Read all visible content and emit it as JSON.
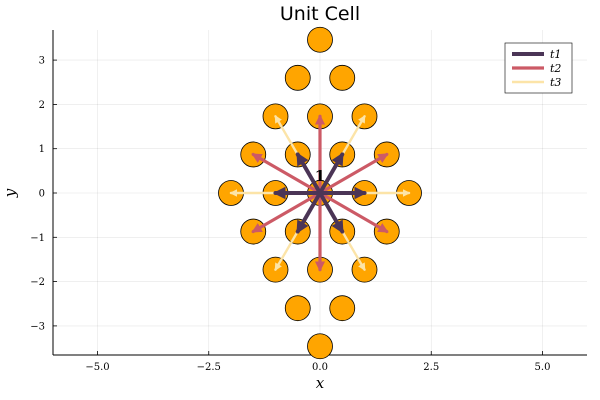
{
  "chart_data": {
    "type": "scatter",
    "title": "Unit Cell",
    "xlabel": "x",
    "ylabel": "y",
    "xlim": [
      -6.0,
      6.0
    ],
    "ylim": [
      -3.7,
      3.7
    ],
    "xticks": [
      -5.0,
      -2.5,
      0.0,
      2.5,
      5.0
    ],
    "xtick_labels": [
      "−5.0",
      "−2.5",
      "0.0",
      "2.5",
      "5.0"
    ],
    "yticks": [
      -3,
      -2,
      -1,
      0,
      1,
      2,
      3
    ],
    "ytick_labels": [
      "−3",
      "−2",
      "−1",
      "0",
      "1",
      "2",
      "3"
    ],
    "grid": true,
    "legend_position": "top-right",
    "annotation": {
      "text": "1",
      "x": 0.0,
      "y": 0.38
    },
    "points": {
      "color": "#FFA500",
      "edge_color": "#000000",
      "x": [
        0,
        -0.5,
        0.5,
        -1,
        0,
        1,
        -1.5,
        -0.5,
        0.5,
        1.5,
        -2,
        -1,
        0,
        1,
        2,
        -1.5,
        -0.5,
        0.5,
        1.5,
        -1,
        0,
        1,
        -0.5,
        0.5,
        0
      ],
      "y": [
        3.46,
        2.6,
        2.6,
        1.73,
        1.73,
        1.73,
        0.87,
        0.87,
        0.87,
        0.87,
        0,
        0,
        0,
        0,
        0,
        -0.87,
        -0.87,
        -0.87,
        -0.87,
        -1.73,
        -1.73,
        -1.73,
        -2.6,
        -2.6,
        -3.46
      ]
    },
    "series": [
      {
        "name": "t1",
        "color": "#4B3556",
        "vectors": [
          [
            0.5,
            0.87
          ],
          [
            -0.5,
            0.87
          ],
          [
            1,
            0
          ],
          [
            -1,
            0
          ],
          [
            0.5,
            -0.87
          ],
          [
            -0.5,
            -0.87
          ]
        ]
      },
      {
        "name": "t2",
        "color": "#CC5A66",
        "vectors": [
          [
            0,
            1.73
          ],
          [
            0,
            -1.73
          ],
          [
            1.5,
            0.87
          ],
          [
            -1.5,
            0.87
          ],
          [
            1.5,
            -0.87
          ],
          [
            -1.5,
            -0.87
          ]
        ]
      },
      {
        "name": "t3",
        "color": "#FCE4A8",
        "vectors": [
          [
            1,
            1.73
          ],
          [
            -1,
            1.73
          ],
          [
            2,
            0
          ],
          [
            -2,
            0
          ],
          [
            1,
            -1.73
          ],
          [
            -1,
            -1.73
          ]
        ]
      }
    ]
  }
}
